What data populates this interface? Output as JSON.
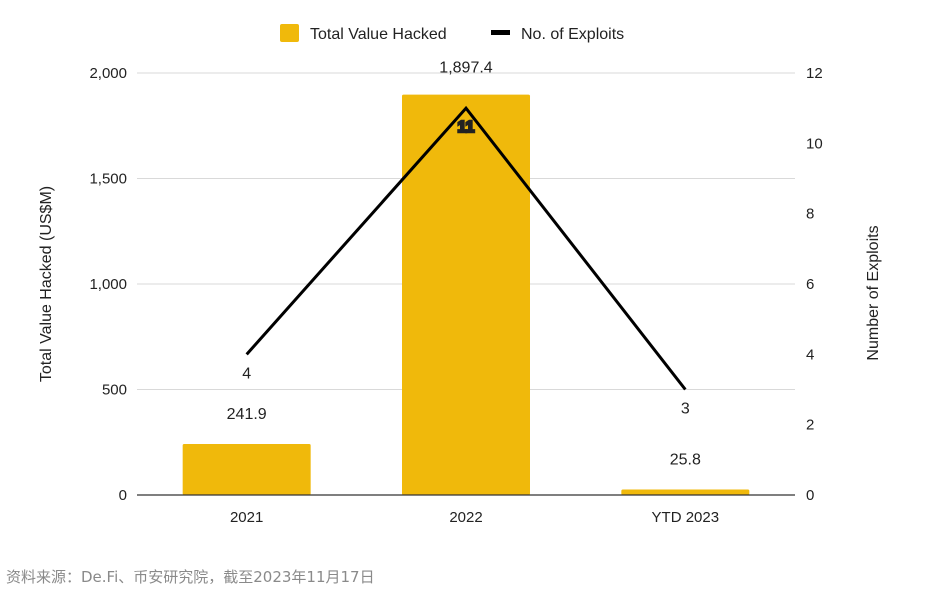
{
  "chart_data": {
    "type": "bar",
    "categories": [
      "2021",
      "2022",
      "YTD 2023"
    ],
    "series": [
      {
        "name": "Total Value Hacked",
        "kind": "bar",
        "axis": "left",
        "values": [
          241.9,
          1897.4,
          25.8
        ],
        "labels": [
          "241.9",
          "1,897.4",
          "25.8"
        ]
      },
      {
        "name": "No. of Exploits",
        "kind": "line",
        "axis": "right",
        "values": [
          4,
          11,
          3
        ],
        "labels": [
          "4",
          "11",
          "3"
        ]
      }
    ],
    "ylabel": "Total Value Hacked (US$M)",
    "y2label": "Number of Exploits",
    "ylim": [
      0,
      2000
    ],
    "y2lim": [
      0,
      12
    ],
    "yticks": [
      "0",
      "500",
      "1,000",
      "1,500",
      "2,000"
    ],
    "yticks_values": [
      0,
      500,
      1000,
      1500,
      2000
    ],
    "y2ticks": [
      "0",
      "2",
      "4",
      "6",
      "8",
      "10",
      "12"
    ],
    "y2ticks_values": [
      0,
      2,
      4,
      6,
      8,
      10,
      12
    ],
    "legend_position": "top-center",
    "grid": true
  },
  "colors": {
    "bar": "#F0B90B",
    "line": "#000000",
    "grid": "#d9d9d9",
    "axis": "#333333"
  },
  "source": "资料来源：De.Fi、币安研究院，截至2023年11月17日"
}
